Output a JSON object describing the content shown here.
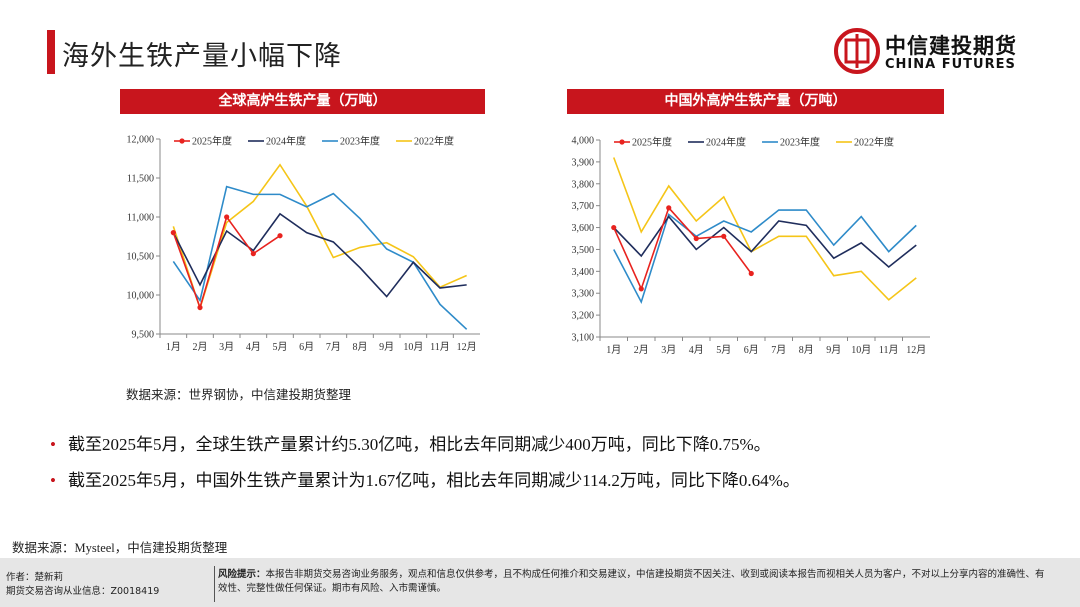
{
  "header": {
    "title": "海外生铁产量小幅下降",
    "logo_cn": "中信建投期货",
    "logo_en": "CHINA FUTURES"
  },
  "chart_data": [
    {
      "type": "line",
      "title": "全球高炉生铁产量（万吨）",
      "categories": [
        "1月",
        "2月",
        "3月",
        "4月",
        "5月",
        "6月",
        "7月",
        "8月",
        "9月",
        "10月",
        "11月",
        "12月"
      ],
      "series": [
        {
          "name": "2025年度",
          "color": "#e8231f",
          "markers": true,
          "values": [
            10800,
            9840,
            11000,
            10530,
            10760,
            null,
            null,
            null,
            null,
            null,
            null,
            null
          ]
        },
        {
          "name": "2024年度",
          "color": "#1f2d5c",
          "values": [
            10800,
            10130,
            10820,
            10570,
            11040,
            10800,
            10680,
            10350,
            9980,
            10420,
            10090,
            10130
          ]
        },
        {
          "name": "2023年度",
          "color": "#2e8bc9",
          "values": [
            10430,
            9930,
            11390,
            11290,
            11290,
            11130,
            11300,
            10980,
            10590,
            10420,
            9880,
            9560
          ]
        },
        {
          "name": "2022年度",
          "color": "#f5c518",
          "values": [
            10880,
            9830,
            10930,
            11200,
            11670,
            11140,
            10480,
            10610,
            10670,
            10490,
            10100,
            10250
          ]
        }
      ],
      "ylim": [
        9500,
        12000
      ],
      "yticks": [
        {
          "value": 9500,
          "label": "9,500"
        },
        {
          "value": 10000,
          "label": "10,000"
        },
        {
          "value": 10500,
          "label": "10,500"
        },
        {
          "value": 11000,
          "label": "11,000"
        },
        {
          "value": 11500,
          "label": "11,500"
        },
        {
          "value": 12000,
          "label": "12,000"
        }
      ],
      "source": "数据来源：世界钢协，中信建投期货整理"
    },
    {
      "type": "line",
      "title": "中国外高炉生铁产量（万吨）",
      "categories": [
        "1月",
        "2月",
        "3月",
        "4月",
        "5月",
        "6月",
        "7月",
        "8月",
        "9月",
        "10月",
        "11月",
        "12月"
      ],
      "series": [
        {
          "name": "2025年度",
          "color": "#e8231f",
          "markers": true,
          "values": [
            3600,
            3320,
            3690,
            3550,
            3560,
            3390,
            null,
            null,
            null,
            null,
            null,
            null
          ]
        },
        {
          "name": "2024年度",
          "color": "#1f2d5c",
          "values": [
            3600,
            3470,
            3650,
            3500,
            3600,
            3490,
            3630,
            3610,
            3460,
            3530,
            3420,
            3520
          ]
        },
        {
          "name": "2023年度",
          "color": "#2e8bc9",
          "values": [
            3500,
            3260,
            3660,
            3560,
            3630,
            3580,
            3680,
            3680,
            3520,
            3650,
            3490,
            3610
          ]
        },
        {
          "name": "2022年度",
          "color": "#f5c518",
          "values": [
            3920,
            3580,
            3790,
            3630,
            3740,
            3490,
            3560,
            3560,
            3380,
            3400,
            3270,
            3370
          ]
        }
      ],
      "ylim": [
        3100,
        4000
      ],
      "yticks": [
        {
          "value": 3100,
          "label": "3,100"
        },
        {
          "value": 3200,
          "label": "3,200"
        },
        {
          "value": 3300,
          "label": "3,300"
        },
        {
          "value": 3400,
          "label": "3,400"
        },
        {
          "value": 3500,
          "label": "3,500"
        },
        {
          "value": 3600,
          "label": "3,600"
        },
        {
          "value": 3700,
          "label": "3,700"
        },
        {
          "value": 3800,
          "label": "3,800"
        },
        {
          "value": 3900,
          "label": "3,900"
        },
        {
          "value": 4000,
          "label": "4,000"
        }
      ]
    }
  ],
  "bullets": [
    "截至2025年5月，全球生铁产量累计约5.30亿吨，相比去年同期减少400万吨，同比下降0.75%。",
    "截至2025年5月，中国外生铁产量累计为1.67亿吨，相比去年同期减少114.2万吨，同比下降0.64%。"
  ],
  "source": "数据来源：Mysteel，中信建投期货整理",
  "footer": {
    "author": "作者：楚新莉",
    "license": "期货交易咨询从业信息：Z0018419",
    "risk_label": "风险提示：",
    "risk_text": "本报告非期货交易咨询业务服务，观点和信息仅供参考，且不构成任何推介和交易建议，中信建投期货不因关注、收到或阅读本报告而视相关人员为客户，不对以上分享内容的准确性、有效性、完整性做任何保证。期市有风险、入市需谨慎。"
  }
}
